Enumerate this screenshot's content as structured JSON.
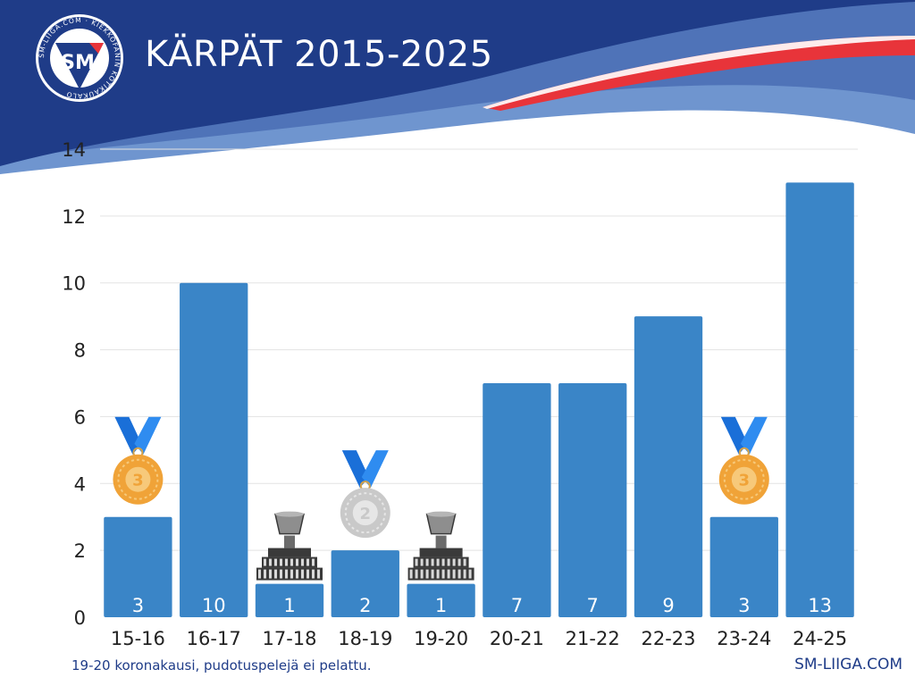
{
  "header": {
    "title": "KÄRPÄT 2015-2025",
    "logo_text": "SM",
    "logo_ring_text": "SM-LIIGA.COM · KIEKKOFANIN KOTIKAUKALO"
  },
  "colors": {
    "bar": "#3a85c7",
    "banner_dark": "#1f3c88",
    "banner_mid": "#4f73b8",
    "banner_light": "#6f95cf",
    "banner_red": "#e8343a",
    "grid": "#e3e3e3"
  },
  "chart_data": {
    "type": "bar",
    "title": "",
    "xlabel": "",
    "ylabel": "",
    "categories": [
      "15-16",
      "16-17",
      "17-18",
      "18-19",
      "19-20",
      "20-21",
      "21-22",
      "22-23",
      "23-24",
      "24-25"
    ],
    "values": [
      3,
      10,
      1,
      2,
      1,
      7,
      7,
      9,
      3,
      13
    ],
    "ylim": [
      0,
      14
    ],
    "yticks": [
      0,
      2,
      4,
      6,
      8,
      10,
      12,
      14
    ],
    "grid": true,
    "data_labels": true,
    "markers": [
      {
        "category": "15-16",
        "icon": "bronze-medal-icon",
        "text": "3"
      },
      {
        "category": "17-18",
        "icon": "trophy-icon"
      },
      {
        "category": "18-19",
        "icon": "silver-medal-icon",
        "text": "2"
      },
      {
        "category": "19-20",
        "icon": "trophy-icon"
      },
      {
        "category": "23-24",
        "icon": "bronze-medal-icon",
        "text": "3"
      }
    ]
  },
  "footer": {
    "note": "19-20 koronakausi, pudotuspelejä ei pelattu.",
    "site": "SM-LIIGA.COM"
  }
}
